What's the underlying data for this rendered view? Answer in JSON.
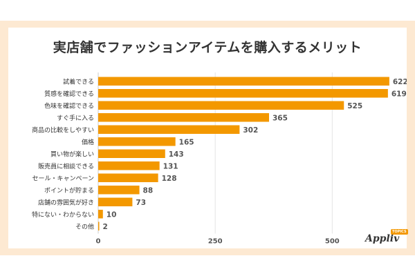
{
  "chart_data": {
    "type": "bar",
    "orientation": "horizontal",
    "title": "実店舗でファッションアイテムを購入するメリット",
    "categories": [
      "試着できる",
      "質感を確認できる",
      "色味を確認できる",
      "すぐ手に入る",
      "商品の比較をしやすい",
      "価格",
      "買い物が楽しい",
      "販売員に相談できる",
      "セール・キャンペーン",
      "ポイントが貯まる",
      "店舗の雰囲気が好き",
      "特にない・わからない",
      "その他"
    ],
    "values": [
      622,
      619,
      525,
      365,
      302,
      165,
      143,
      131,
      128,
      88,
      73,
      10,
      2
    ],
    "xlim": [
      0,
      600
    ],
    "xticks": [
      0,
      250,
      500
    ],
    "grid": true,
    "bar_color": "#f39800"
  },
  "branding": {
    "logo": "Appliv",
    "badge": "TOPICS"
  }
}
